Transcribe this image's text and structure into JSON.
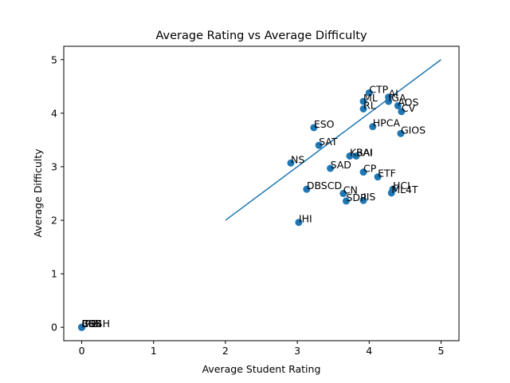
{
  "chart_data": {
    "type": "scatter",
    "title": "Average Rating vs Average Difficulty",
    "xlabel": "Average Student Rating",
    "ylabel": "Average Difficulty",
    "xlim": [
      -0.25,
      5.25
    ],
    "ylim": [
      -0.25,
      5.25
    ],
    "xticks": [
      0,
      1,
      2,
      3,
      4,
      5
    ],
    "yticks": [
      0,
      1,
      2,
      3,
      4,
      5
    ],
    "grid": false,
    "point_color": "#1f77b4",
    "line_color": "#1f77b4",
    "trend_line": {
      "x": [
        2,
        5
      ],
      "y": [
        2,
        5
      ]
    },
    "points": [
      {
        "label": "CTP",
        "x": 4.0,
        "y": 4.38
      },
      {
        "label": "AI",
        "x": 4.27,
        "y": 4.3
      },
      {
        "label": "ML",
        "x": 3.92,
        "y": 4.22
      },
      {
        "label": "IGA",
        "x": 4.27,
        "y": 4.22
      },
      {
        "label": "AOS",
        "x": 4.4,
        "y": 4.14
      },
      {
        "label": "RL",
        "x": 3.92,
        "y": 4.08
      },
      {
        "label": "CV",
        "x": 4.45,
        "y": 4.03
      },
      {
        "label": "ESO",
        "x": 3.23,
        "y": 3.73
      },
      {
        "label": "HPCA",
        "x": 4.05,
        "y": 3.75
      },
      {
        "label": "GIOS",
        "x": 4.44,
        "y": 3.62
      },
      {
        "label": "SAT",
        "x": 3.3,
        "y": 3.4
      },
      {
        "label": "KBAI",
        "x": 3.73,
        "y": 3.2
      },
      {
        "label": "RAI",
        "x": 3.82,
        "y": 3.2
      },
      {
        "label": "NS",
        "x": 2.91,
        "y": 3.07
      },
      {
        "label": "SAD",
        "x": 3.46,
        "y": 2.97
      },
      {
        "label": "CP",
        "x": 3.92,
        "y": 2.9
      },
      {
        "label": "ETF",
        "x": 4.12,
        "y": 2.81
      },
      {
        "label": "HCI",
        "x": 4.33,
        "y": 2.58
      },
      {
        "label": "ML4T",
        "x": 4.31,
        "y": 2.51
      },
      {
        "label": "DBSCD",
        "x": 3.13,
        "y": 2.58
      },
      {
        "label": "CN",
        "x": 3.64,
        "y": 2.5
      },
      {
        "label": "SDP",
        "x": 3.68,
        "y": 2.36
      },
      {
        "label": "IIS",
        "x": 3.92,
        "y": 2.37
      },
      {
        "label": "IHI",
        "x": 3.02,
        "y": 1.96
      },
      {
        "label": "IPE",
        "x": 0.0,
        "y": 0.0
      },
      {
        "label": "BD4H",
        "x": 0.0,
        "y": 0.0
      },
      {
        "label": "CSE",
        "x": 0.0,
        "y": 0.0
      },
      {
        "label": "CSS",
        "x": 0.0,
        "y": 0.0
      },
      {
        "label": "EOS",
        "x": 0.0,
        "y": 0.0
      }
    ]
  }
}
